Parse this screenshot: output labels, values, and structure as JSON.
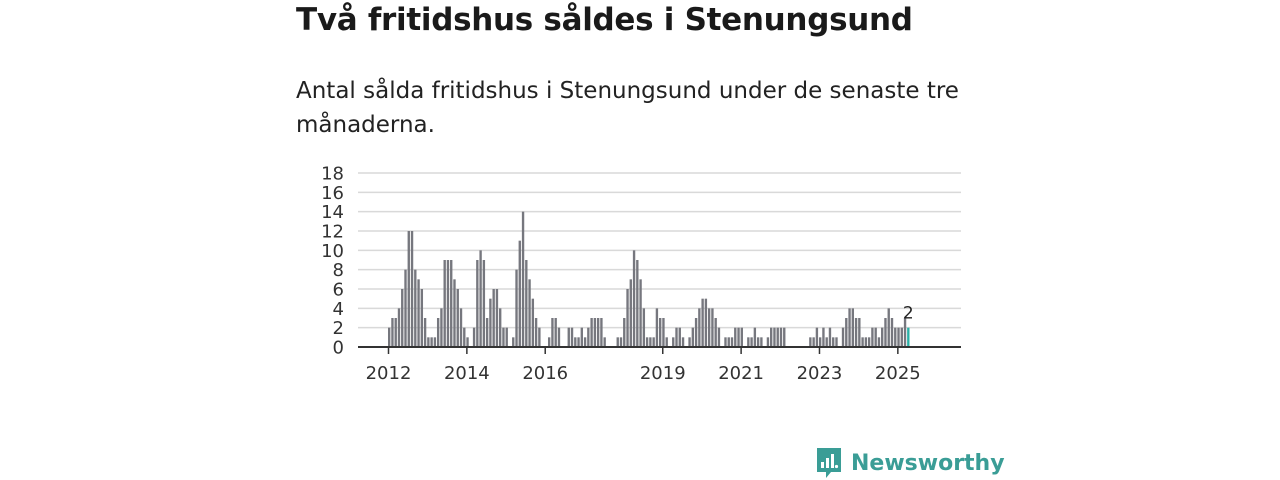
{
  "header": {
    "title": "Två fritidshus såldes i Stenungsund",
    "subtitle": "Antal sålda fritidshus i Stenungsund under de senaste tre månaderna."
  },
  "brand": {
    "name": "Newsworthy",
    "color": "#3a9d96"
  },
  "chart_data": {
    "type": "bar",
    "title": "",
    "xlabel": "",
    "ylabel": "",
    "ylim": [
      0,
      18
    ],
    "yticks": [
      0,
      2,
      4,
      6,
      8,
      10,
      12,
      14,
      16,
      18
    ],
    "xtick_labels": [
      "2012",
      "2014",
      "2016",
      "2019",
      "2021",
      "2023",
      "2025"
    ],
    "x_start": "2012-01",
    "x_end": "2025-09",
    "grid": true,
    "bar_color": "#76777e",
    "highlight_color": "#2ab0a6",
    "last_value_label": "2",
    "values": [
      2,
      3,
      3,
      4,
      6,
      8,
      12,
      12,
      8,
      7,
      6,
      3,
      1,
      1,
      1,
      3,
      4,
      9,
      9,
      9,
      7,
      6,
      4,
      2,
      1,
      0,
      2,
      9,
      10,
      9,
      3,
      5,
      6,
      6,
      4,
      2,
      2,
      0,
      1,
      8,
      11,
      14,
      9,
      7,
      5,
      3,
      2,
      0,
      0,
      1,
      3,
      3,
      2,
      0,
      0,
      2,
      2,
      1,
      1,
      2,
      1,
      2,
      3,
      3,
      3,
      3,
      1,
      0,
      0,
      0,
      1,
      1,
      3,
      6,
      7,
      10,
      9,
      7,
      4,
      1,
      1,
      1,
      4,
      3,
      3,
      1,
      0,
      1,
      2,
      2,
      1,
      0,
      1,
      2,
      3,
      4,
      5,
      5,
      4,
      4,
      3,
      2,
      0,
      1,
      1,
      1,
      2,
      2,
      2,
      0,
      1,
      1,
      2,
      1,
      1,
      0,
      1,
      2,
      2,
      2,
      2,
      2,
      0,
      0,
      0,
      0,
      0,
      0,
      0,
      1,
      1,
      2,
      1,
      2,
      1,
      2,
      1,
      1,
      0,
      2,
      3,
      4,
      4,
      3,
      3,
      1,
      1,
      1,
      2,
      2,
      1,
      2,
      3,
      4,
      3,
      2,
      2,
      2,
      3,
      2
    ]
  }
}
